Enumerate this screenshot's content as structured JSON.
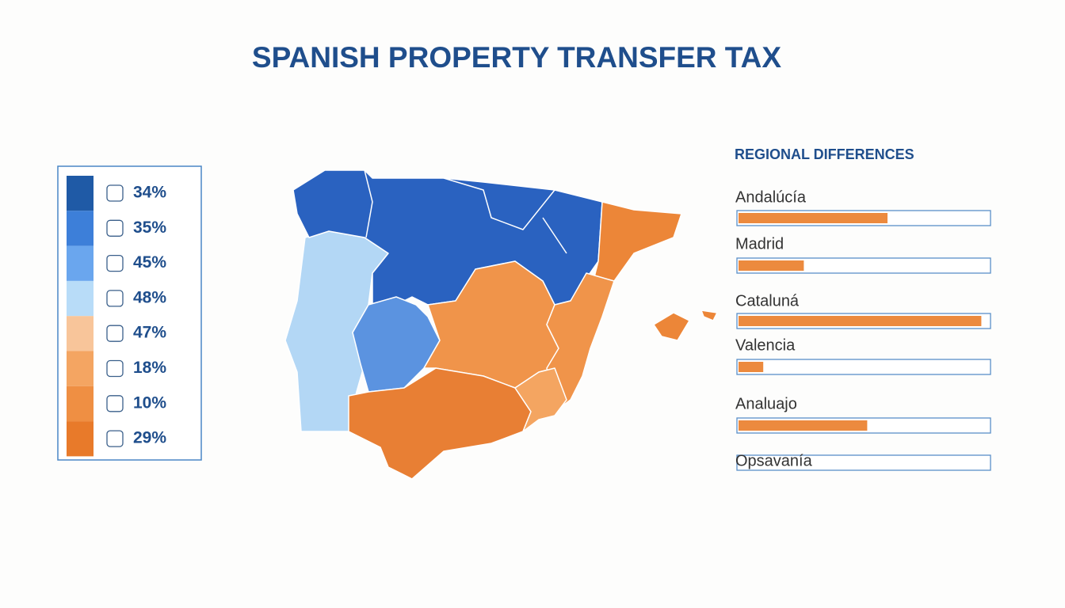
{
  "title": "SPANISH PROPERTY TRANSFER TAX",
  "legend": {
    "items": [
      {
        "color": "#1f5aa6",
        "label": "34%"
      },
      {
        "color": "#3d7fd9",
        "label": "35%"
      },
      {
        "color": "#6aa6ee",
        "label": "45%"
      },
      {
        "color": "#b8dcf8",
        "label": "48%"
      },
      {
        "color": "#f8c59a",
        "label": "47%"
      },
      {
        "color": "#f4a562",
        "label": "18%"
      },
      {
        "color": "#ef8f43",
        "label": "10%"
      },
      {
        "color": "#e87a2a",
        "label": "29%"
      }
    ]
  },
  "chart_data": {
    "type": "bar",
    "title": "REGIONAL DIFFERENCES",
    "categories": [
      "Andalúcía",
      "Madrid",
      "Cataluná",
      "Valencia",
      "Analuajo",
      "Opsavanía"
    ],
    "values": [
      60,
      27,
      97,
      11,
      52,
      0
    ],
    "xlim": [
      0,
      100
    ],
    "color": "#ec8a3e"
  }
}
